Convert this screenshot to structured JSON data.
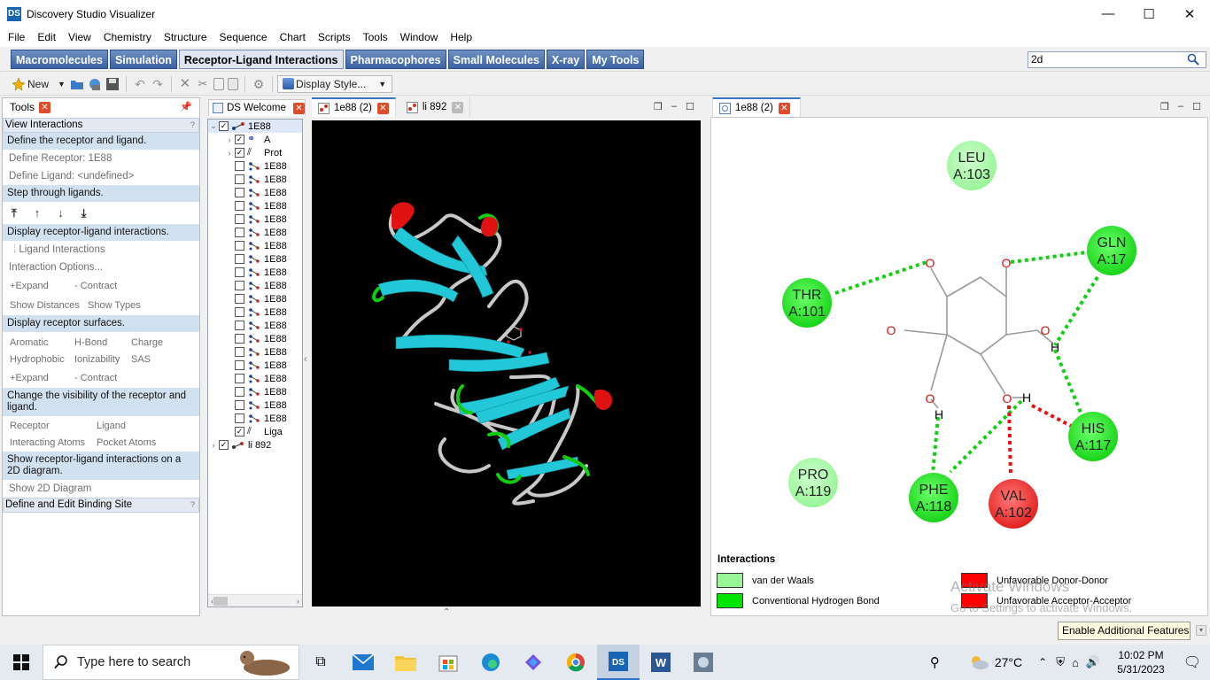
{
  "window": {
    "title": "Discovery Studio Visualizer",
    "minimize": "—",
    "maximize": "☐",
    "close": "✕"
  },
  "menu": [
    "File",
    "Edit",
    "View",
    "Chemistry",
    "Structure",
    "Sequence",
    "Chart",
    "Scripts",
    "Tools",
    "Window",
    "Help"
  ],
  "ribbon_tabs": [
    "Macromolecules",
    "Simulation",
    "Receptor-Ligand Interactions",
    "Pharmacophores",
    "Small Molecules",
    "X-ray",
    "My Tools"
  ],
  "ribbon_active": "Receptor-Ligand Interactions",
  "search": {
    "value": "2d"
  },
  "toolbar": {
    "new_label": "New",
    "display_style_label": "Display Style..."
  },
  "tools_panel": {
    "tab_label": "Tools",
    "section1_title": "View Interactions",
    "step_define": "Define the receptor and ligand.",
    "define_receptor": "Define Receptor: 1E88",
    "define_ligand": "Define Ligand: <undefined>",
    "step_through": "Step through ligands.",
    "step_display": "Display receptor-ligand interactions.",
    "ligand_interactions": "Ligand Interactions",
    "interaction_options": "Interaction Options...",
    "expand": "Expand",
    "contract": "Contract",
    "show_distances": "Show Distances",
    "show_types": "Show Types",
    "step_surfaces": "Display receptor surfaces.",
    "surf_aromatic": "Aromatic",
    "surf_hbond": "H-Bond",
    "surf_charge": "Charge",
    "surf_hydrophobic": "Hydrophobic",
    "surf_ionizability": "Ionizability",
    "surf_sas": "SAS",
    "expand2": "Expand",
    "contract2": "Contract",
    "step_visibility": "Change the visibility of the receptor and ligand.",
    "vis_receptor": "Receptor",
    "vis_ligand": "Ligand",
    "vis_interacting": "Interacting Atoms",
    "vis_pocket": "Pocket Atoms",
    "step_2d": "Show receptor-ligand interactions on a 2D diagram.",
    "show_2d": "Show 2D Diagram",
    "section2_title": "Define and Edit Binding Site"
  },
  "hierarchy": {
    "tab_label": "DS Welcome",
    "root": "1E88",
    "chain": "A",
    "protein": "Prot",
    "ligands_group": "Liga",
    "child_label": "1E88",
    "child_count": 20,
    "second_root": "li 892"
  },
  "view_tabs": [
    "1e88 (2)",
    "li 892"
  ],
  "panel2d": {
    "tab_label": "1e88 (2)",
    "residues": [
      {
        "name": "LEU",
        "id": "A:103",
        "kind": "vdw"
      },
      {
        "name": "GLN",
        "id": "A:17",
        "kind": "hbond"
      },
      {
        "name": "THR",
        "id": "A:101",
        "kind": "hbond"
      },
      {
        "name": "HIS",
        "id": "A:117",
        "kind": "hbond"
      },
      {
        "name": "PRO",
        "id": "A:119",
        "kind": "vdw"
      },
      {
        "name": "PHE",
        "id": "A:118",
        "kind": "hbond"
      },
      {
        "name": "VAL",
        "id": "A:102",
        "kind": "unfavorable"
      }
    ],
    "atom_o": "O",
    "atom_h": "H",
    "legend_title": "Interactions",
    "legend": [
      {
        "label": "van der Waals",
        "color": "#98f598"
      },
      {
        "label": "Conventional Hydrogen Bond",
        "color": "#00e600"
      },
      {
        "label": "Unfavorable Donor-Donor",
        "color": "#ff0000"
      },
      {
        "label": "Unfavorable Acceptor-Acceptor",
        "color": "#ff0000"
      }
    ],
    "watermark_title": "Activate Windows",
    "watermark_text": "Go to Settings to activate Windows."
  },
  "additional_features": "Enable Additional Features",
  "taskbar": {
    "search_placeholder": "Type here to search",
    "weather": "27°C",
    "time": "10:02 PM",
    "date": "5/31/2023"
  },
  "colors": {
    "ribbon_tab": "#3b62a3",
    "vdw": "#98f598",
    "hbond": "#00e600",
    "unfavorable": "#ff0000",
    "helix_strand": "#22c8d8"
  }
}
